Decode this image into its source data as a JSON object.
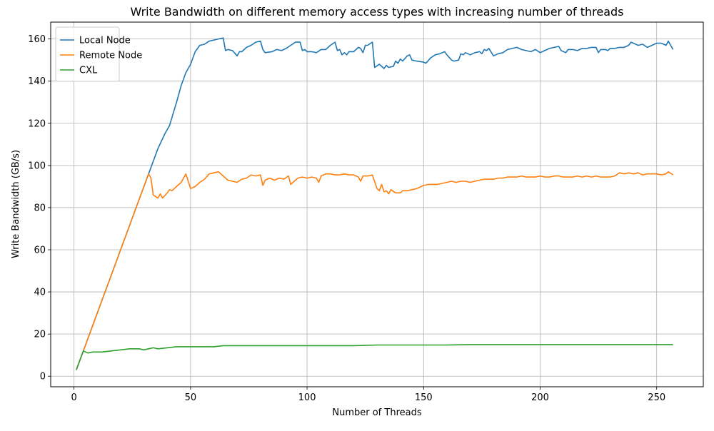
{
  "chart_data": {
    "type": "line",
    "title": "Write Bandwidth on different memory access types with increasing number of threads",
    "xlabel": "Number of Threads",
    "ylabel": "Write Bandwidth (GB/s)",
    "xlim": [
      -10,
      270
    ],
    "ylim": [
      -5,
      168
    ],
    "xticks": [
      "0",
      "50",
      "100",
      "150",
      "200",
      "250"
    ],
    "yticks": [
      "0",
      "20",
      "40",
      "60",
      "80",
      "100",
      "120",
      "140",
      "160"
    ],
    "grid": true,
    "legend_position": "top-left",
    "series": [
      {
        "name": "Local Node",
        "color": "#1f77b4",
        "points": [
          [
            1,
            3
          ],
          [
            4,
            12
          ],
          [
            8,
            24
          ],
          [
            12,
            36
          ],
          [
            16,
            48
          ],
          [
            20,
            60
          ],
          [
            24,
            72
          ],
          [
            28,
            84
          ],
          [
            32,
            96
          ],
          [
            36,
            108
          ],
          [
            39,
            115
          ],
          [
            41,
            119
          ],
          [
            44,
            130
          ],
          [
            46,
            138
          ],
          [
            48,
            144
          ],
          [
            50,
            148
          ],
          [
            52,
            154
          ],
          [
            54,
            157
          ],
          [
            56,
            157.5
          ],
          [
            58,
            159
          ],
          [
            62,
            160
          ],
          [
            64,
            160.5
          ],
          [
            65,
            154.5
          ],
          [
            66,
            155
          ],
          [
            68,
            154.5
          ],
          [
            70,
            152
          ],
          [
            71,
            154
          ],
          [
            72,
            154
          ],
          [
            74,
            156
          ],
          [
            76,
            157
          ],
          [
            78,
            158.5
          ],
          [
            80,
            159
          ],
          [
            81,
            155
          ],
          [
            82,
            153.5
          ],
          [
            85,
            154
          ],
          [
            87,
            155
          ],
          [
            89,
            154.5
          ],
          [
            91,
            155.5
          ],
          [
            93,
            157
          ],
          [
            95,
            158.5
          ],
          [
            97,
            158.5
          ],
          [
            98,
            154.5
          ],
          [
            99,
            155
          ],
          [
            100,
            154
          ],
          [
            102,
            154
          ],
          [
            104,
            153.5
          ],
          [
            106,
            155
          ],
          [
            108,
            155
          ],
          [
            110,
            157
          ],
          [
            112,
            158.5
          ],
          [
            113,
            154.5
          ],
          [
            114,
            155
          ],
          [
            115,
            152.5
          ],
          [
            116,
            153.5
          ],
          [
            117,
            152.5
          ],
          [
            118,
            154
          ],
          [
            120,
            154
          ],
          [
            122,
            156
          ],
          [
            123,
            155.5
          ],
          [
            124,
            153.5
          ],
          [
            125,
            157
          ],
          [
            126,
            157
          ],
          [
            128,
            158.5
          ],
          [
            129,
            146.5
          ],
          [
            131,
            148
          ],
          [
            133,
            146
          ],
          [
            134,
            147.5
          ],
          [
            135,
            146.5
          ],
          [
            137,
            147
          ],
          [
            138,
            149.5
          ],
          [
            139,
            148.5
          ],
          [
            140,
            150.5
          ],
          [
            141,
            149.5
          ],
          [
            143,
            152
          ],
          [
            144,
            152.5
          ],
          [
            145,
            150
          ],
          [
            147,
            149.5
          ],
          [
            150,
            149
          ],
          [
            151,
            148.5
          ],
          [
            153,
            151
          ],
          [
            155,
            152.5
          ],
          [
            157,
            153
          ],
          [
            159,
            154
          ],
          [
            160,
            152.5
          ],
          [
            162,
            150
          ],
          [
            163,
            149.5
          ],
          [
            165,
            150
          ],
          [
            166,
            153
          ],
          [
            167,
            152.5
          ],
          [
            168,
            153.5
          ],
          [
            170,
            152.5
          ],
          [
            172,
            153.5
          ],
          [
            174,
            154
          ],
          [
            175,
            153
          ],
          [
            176,
            155
          ],
          [
            177,
            154.5
          ],
          [
            178,
            155.5
          ],
          [
            180,
            152
          ],
          [
            182,
            153
          ],
          [
            184,
            153.5
          ],
          [
            186,
            155
          ],
          [
            188,
            155.5
          ],
          [
            190,
            156
          ],
          [
            192,
            155
          ],
          [
            194,
            154.5
          ],
          [
            196,
            154
          ],
          [
            198,
            155
          ],
          [
            200,
            153.5
          ],
          [
            202,
            154.5
          ],
          [
            204,
            155.5
          ],
          [
            206,
            156
          ],
          [
            208,
            156.5
          ],
          [
            209,
            154.5
          ],
          [
            211,
            153.5
          ],
          [
            212,
            155
          ],
          [
            214,
            155
          ],
          [
            216,
            154.5
          ],
          [
            218,
            155.5
          ],
          [
            220,
            155.5
          ],
          [
            222,
            156
          ],
          [
            224,
            156
          ],
          [
            225,
            153.5
          ],
          [
            226,
            155
          ],
          [
            228,
            155
          ],
          [
            229,
            154.5
          ],
          [
            230,
            155.5
          ],
          [
            232,
            155.5
          ],
          [
            234,
            156
          ],
          [
            236,
            156
          ],
          [
            238,
            157
          ],
          [
            239,
            158.5
          ],
          [
            240,
            158
          ],
          [
            242,
            157
          ],
          [
            244,
            157.5
          ],
          [
            246,
            156
          ],
          [
            248,
            157
          ],
          [
            250,
            158
          ],
          [
            252,
            158
          ],
          [
            254,
            157
          ],
          [
            255,
            159
          ],
          [
            257,
            155
          ]
        ]
      },
      {
        "name": "Remote Node",
        "color": "#ff7f0e",
        "points": [
          [
            1,
            3
          ],
          [
            4,
            12
          ],
          [
            8,
            24
          ],
          [
            12,
            36
          ],
          [
            16,
            48
          ],
          [
            20,
            60
          ],
          [
            24,
            72
          ],
          [
            28,
            84
          ],
          [
            32,
            96
          ],
          [
            33,
            94
          ],
          [
            34,
            86
          ],
          [
            36,
            84.5
          ],
          [
            37,
            86.5
          ],
          [
            38,
            84.5
          ],
          [
            40,
            87
          ],
          [
            41,
            88.5
          ],
          [
            42,
            88
          ],
          [
            44,
            90
          ],
          [
            46,
            92
          ],
          [
            48,
            96
          ],
          [
            50,
            89
          ],
          [
            52,
            90
          ],
          [
            54,
            92
          ],
          [
            56,
            93.5
          ],
          [
            58,
            96
          ],
          [
            60,
            96.5
          ],
          [
            62,
            97
          ],
          [
            64,
            95
          ],
          [
            66,
            93
          ],
          [
            68,
            92.5
          ],
          [
            70,
            92
          ],
          [
            72,
            93.5
          ],
          [
            74,
            94
          ],
          [
            76,
            95.5
          ],
          [
            78,
            95
          ],
          [
            80,
            95.5
          ],
          [
            81,
            90.5
          ],
          [
            82,
            93
          ],
          [
            84,
            94
          ],
          [
            86,
            93
          ],
          [
            88,
            94
          ],
          [
            90,
            93.5
          ],
          [
            92,
            95
          ],
          [
            93,
            91
          ],
          [
            95,
            93
          ],
          [
            96,
            94
          ],
          [
            98,
            94.5
          ],
          [
            100,
            94
          ],
          [
            102,
            94.5
          ],
          [
            104,
            94
          ],
          [
            105,
            92
          ],
          [
            106,
            95
          ],
          [
            108,
            96
          ],
          [
            110,
            96
          ],
          [
            112,
            95.5
          ],
          [
            114,
            95.5
          ],
          [
            116,
            96
          ],
          [
            118,
            95.5
          ],
          [
            120,
            95.5
          ],
          [
            122,
            94.5
          ],
          [
            123,
            92.5
          ],
          [
            124,
            95
          ],
          [
            126,
            95
          ],
          [
            128,
            95.5
          ],
          [
            130,
            89
          ],
          [
            131,
            88
          ],
          [
            132,
            91
          ],
          [
            133,
            87.5
          ],
          [
            134,
            88
          ],
          [
            135,
            86.5
          ],
          [
            136,
            88.5
          ],
          [
            138,
            87
          ],
          [
            140,
            87
          ],
          [
            141,
            88
          ],
          [
            143,
            88
          ],
          [
            145,
            88.5
          ],
          [
            147,
            89
          ],
          [
            149,
            90
          ],
          [
            150,
            90.5
          ],
          [
            152,
            91
          ],
          [
            154,
            91
          ],
          [
            156,
            91
          ],
          [
            158,
            91.5
          ],
          [
            160,
            92
          ],
          [
            162,
            92.5
          ],
          [
            164,
            92
          ],
          [
            166,
            92.5
          ],
          [
            168,
            92.5
          ],
          [
            170,
            92
          ],
          [
            172,
            92.5
          ],
          [
            174,
            93
          ],
          [
            176,
            93.5
          ],
          [
            178,
            93.5
          ],
          [
            180,
            93.5
          ],
          [
            182,
            94
          ],
          [
            184,
            94
          ],
          [
            186,
            94.5
          ],
          [
            188,
            94.5
          ],
          [
            190,
            94.5
          ],
          [
            192,
            95
          ],
          [
            194,
            94.5
          ],
          [
            196,
            94.5
          ],
          [
            198,
            94.5
          ],
          [
            200,
            95
          ],
          [
            202,
            94.5
          ],
          [
            204,
            94.5
          ],
          [
            206,
            95
          ],
          [
            208,
            95
          ],
          [
            210,
            94.5
          ],
          [
            212,
            94.5
          ],
          [
            214,
            94.5
          ],
          [
            216,
            95
          ],
          [
            218,
            94.5
          ],
          [
            220,
            95
          ],
          [
            222,
            94.5
          ],
          [
            224,
            95
          ],
          [
            226,
            94.5
          ],
          [
            228,
            94.5
          ],
          [
            230,
            94.5
          ],
          [
            232,
            95
          ],
          [
            234,
            96.5
          ],
          [
            236,
            96
          ],
          [
            238,
            96.5
          ],
          [
            240,
            96
          ],
          [
            242,
            96.5
          ],
          [
            244,
            95.5
          ],
          [
            246,
            96
          ],
          [
            248,
            96
          ],
          [
            250,
            96
          ],
          [
            252,
            95.5
          ],
          [
            254,
            96
          ],
          [
            255,
            97
          ],
          [
            257,
            95.5
          ]
        ]
      },
      {
        "name": "CXL",
        "color": "#2ca02c",
        "points": [
          [
            1,
            3
          ],
          [
            4,
            12
          ],
          [
            6,
            11
          ],
          [
            8,
            11.5
          ],
          [
            12,
            11.5
          ],
          [
            16,
            12
          ],
          [
            20,
            12.5
          ],
          [
            24,
            13
          ],
          [
            28,
            13
          ],
          [
            30,
            12.5
          ],
          [
            32,
            13
          ],
          [
            34,
            13.5
          ],
          [
            36,
            13
          ],
          [
            40,
            13.5
          ],
          [
            44,
            14
          ],
          [
            48,
            14
          ],
          [
            52,
            14
          ],
          [
            56,
            14
          ],
          [
            60,
            14
          ],
          [
            64,
            14.5
          ],
          [
            68,
            14.5
          ],
          [
            72,
            14.5
          ],
          [
            76,
            14.5
          ],
          [
            80,
            14.5
          ],
          [
            84,
            14.5
          ],
          [
            88,
            14.5
          ],
          [
            92,
            14.5
          ],
          [
            96,
            14.5
          ],
          [
            100,
            14.5
          ],
          [
            110,
            14.5
          ],
          [
            120,
            14.5
          ],
          [
            130,
            14.8
          ],
          [
            140,
            14.8
          ],
          [
            150,
            14.8
          ],
          [
            160,
            14.8
          ],
          [
            170,
            15
          ],
          [
            180,
            15
          ],
          [
            190,
            15
          ],
          [
            200,
            15
          ],
          [
            210,
            15
          ],
          [
            220,
            15
          ],
          [
            230,
            15
          ],
          [
            240,
            15
          ],
          [
            250,
            15
          ],
          [
            257,
            15
          ]
        ]
      }
    ]
  }
}
